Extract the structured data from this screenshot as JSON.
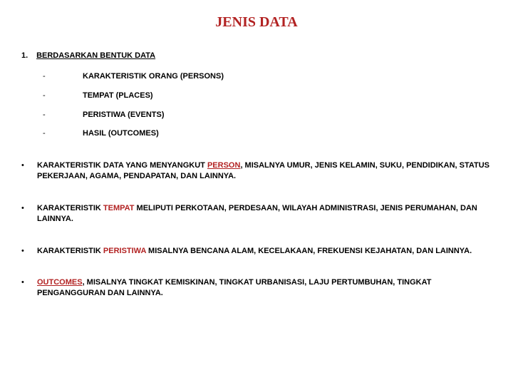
{
  "colors": {
    "title_color": "#8b0000",
    "accent_color": "#b22222",
    "text_color": "#000000",
    "background": "#ffffff"
  },
  "typography": {
    "title_font": "Times New Roman",
    "title_size_pt": 20,
    "body_font": "Arial",
    "body_size_pt": 11
  },
  "title": "JENIS DATA",
  "section": {
    "number": "1.",
    "heading": "BERDASARKAN BENTUK DATA",
    "items": [
      "KARAKTERISTIK ORANG (PERSONS)",
      "TEMPAT (PLACES)",
      "PERISTIWA (EVENTS)",
      "HASIL (OUTCOMES)"
    ]
  },
  "bullets": [
    {
      "lead": "KARAKTERISTIK DATA YANG MENYANGKUT ",
      "accent": "PERSON",
      "tail": ", MISALNYA UMUR, JENIS KELAMIN, SUKU, PENDIDIKAN, STATUS PEKERJAAN, AGAMA, PENDAPATAN, DAN LAINNYA."
    },
    {
      "lead": "KARAKTERISTIK ",
      "accent": "TEMPAT",
      "tail": " MELIPUTI PERKOTAAN, PERDESAAN, WILAYAH ADMINISTRASI, JENIS PERUMAHAN, DAN LAINNYA."
    },
    {
      "lead": "KARAKTERISTIK ",
      "accent": "PERISTIWA",
      "tail": " MISALNYA BENCANA ALAM, KECELAKAAN, FREKUENSI KEJAHATAN, DAN LAINNYA."
    },
    {
      "lead": "",
      "accent": "OUTCOMES",
      "tail": ", MISALNYA TINGKAT KEMISKINAN, TINGKAT URBANISASI, LAJU PERTUMBUHAN, TINGKAT PENGANGGURAN DAN LAINNYA."
    }
  ],
  "dash_char": "-",
  "bullet_char": "•"
}
